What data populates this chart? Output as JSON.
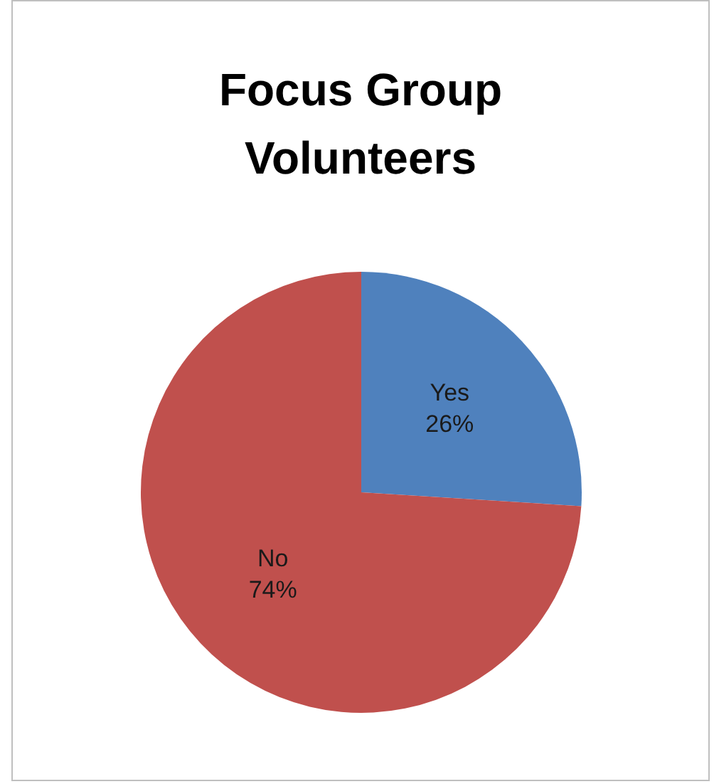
{
  "chart_data": {
    "type": "pie",
    "title": "Focus Group Volunteers",
    "categories": [
      "Yes",
      "No"
    ],
    "values": [
      26,
      74
    ],
    "colors": [
      "#4f81bd",
      "#c0504d"
    ],
    "value_labels": [
      "26%",
      "74%"
    ],
    "legend": false
  }
}
